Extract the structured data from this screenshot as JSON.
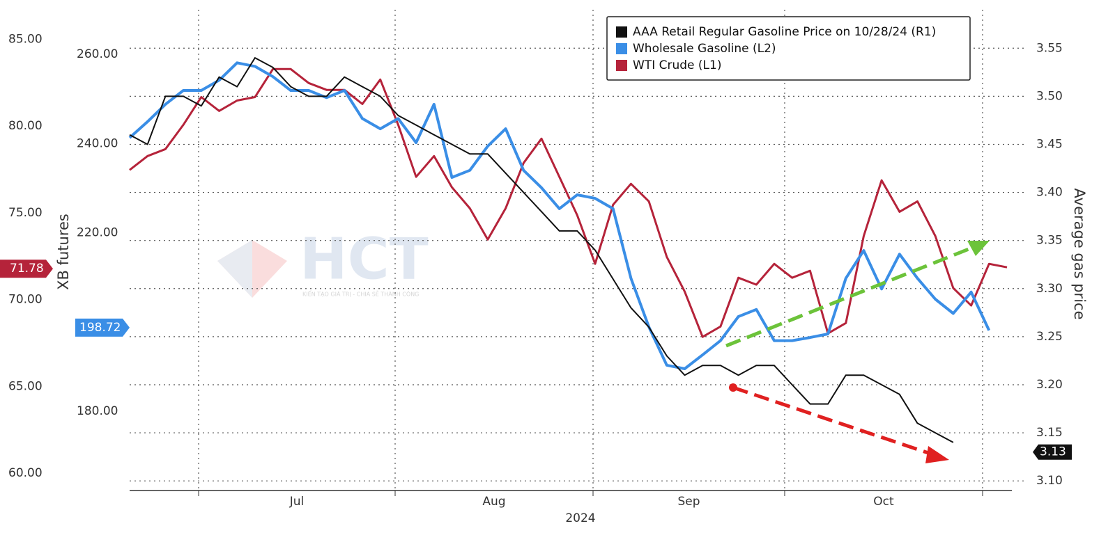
{
  "chart_data": {
    "type": "line",
    "ylabel": "XB futures",
    "y2label": "Average gas price",
    "xlabel": "2024",
    "months": [
      "Jul",
      "Aug",
      "Sep",
      "Oct"
    ],
    "ylim": [
      59,
      86.7
    ],
    "yticks": [
      {
        "value": 60,
        "label": "60.00"
      },
      {
        "value": 65,
        "label": "65.00"
      },
      {
        "value": 70,
        "label": "70.00"
      },
      {
        "value": 75,
        "label": "75.00"
      },
      {
        "value": 80,
        "label": "80.00"
      },
      {
        "value": 85,
        "label": "85.00"
      }
    ],
    "y3lim": [
      162.2,
      270
    ],
    "y3ticks": [
      {
        "value": 180,
        "label": "180.00"
      },
      {
        "value": 220,
        "label": "220.00"
      },
      {
        "value": 240,
        "label": "240.00"
      },
      {
        "value": 260,
        "label": "260.00"
      }
    ],
    "y2lim": [
      3.09,
      3.59
    ],
    "y2ticks": [
      {
        "value": 3.1,
        "label": "3.10"
      },
      {
        "value": 3.15,
        "label": "3.15"
      },
      {
        "value": 3.2,
        "label": "3.20"
      },
      {
        "value": 3.25,
        "label": "3.25"
      },
      {
        "value": 3.3,
        "label": "3.30"
      },
      {
        "value": 3.35,
        "label": "3.35"
      },
      {
        "value": 3.4,
        "label": "3.40"
      },
      {
        "value": 3.45,
        "label": "3.45"
      },
      {
        "value": 3.5,
        "label": "3.50"
      },
      {
        "value": 3.55,
        "label": "3.55"
      }
    ],
    "grid": true,
    "legend": "top-right",
    "series": [
      {
        "name": "AAA Retail Regular Gasoline Price on 10/28/24 (R1)",
        "color": "#111111",
        "axis": "y2",
        "last_value": 3.13,
        "values": [
          3.46,
          3.45,
          3.5,
          3.5,
          3.49,
          3.52,
          3.51,
          3.54,
          3.53,
          3.51,
          3.5,
          3.5,
          3.52,
          3.51,
          3.5,
          3.48,
          3.47,
          3.46,
          3.45,
          3.44,
          3.44,
          3.42,
          3.4,
          3.38,
          3.36,
          3.36,
          3.34,
          3.31,
          3.28,
          3.26,
          3.23,
          3.21,
          3.22,
          3.22,
          3.21,
          3.22,
          3.22,
          3.2,
          3.18,
          3.18,
          3.21,
          3.21,
          3.2,
          3.19,
          3.16,
          3.15,
          3.14,
          null,
          null,
          null
        ]
      },
      {
        "name": "Wholesale Gasoline (L2)",
        "color": "#3a8ee6",
        "axis": "y3",
        "last_value": 198.72,
        "values": [
          241.3,
          244.9,
          248.8,
          251.9,
          251.9,
          254.2,
          258.1,
          257.3,
          255.0,
          251.9,
          251.9,
          250.3,
          251.9,
          245.6,
          243.3,
          245.6,
          240.2,
          248.8,
          232.4,
          234.0,
          239.4,
          243.3,
          234.0,
          230.1,
          225.4,
          228.5,
          227.7,
          225.4,
          209.8,
          198.9,
          190.3,
          189.5,
          192.6,
          195.8,
          201.2,
          202.8,
          195.8,
          195.8,
          196.5,
          197.3,
          209.8,
          216.0,
          207.4,
          215.2,
          209.8,
          205.1,
          201.9,
          206.7,
          198.1,
          null
        ]
      },
      {
        "name": "WTI Crude (L1)",
        "color": "#b5233a",
        "axis": "y",
        "last_value": 71.78,
        "values": [
          77.47,
          78.27,
          78.67,
          80.07,
          81.67,
          80.87,
          81.47,
          81.67,
          83.28,
          83.28,
          82.48,
          82.08,
          82.08,
          81.27,
          82.68,
          80.07,
          77.07,
          78.27,
          76.47,
          75.26,
          73.46,
          75.26,
          77.87,
          79.27,
          77.07,
          74.86,
          72.06,
          75.46,
          76.67,
          75.66,
          72.46,
          70.46,
          67.85,
          68.45,
          71.26,
          70.86,
          72.06,
          71.26,
          71.66,
          68.05,
          68.65,
          73.66,
          76.87,
          75.06,
          75.66,
          73.66,
          70.66,
          69.66,
          72.06,
          71.86
        ]
      }
    ]
  },
  "watermark": {
    "brand": "HCT",
    "slogan": "KIẾN TẠO GIÁ TRỊ - CHIA SẺ THÀNH CÔNG"
  }
}
